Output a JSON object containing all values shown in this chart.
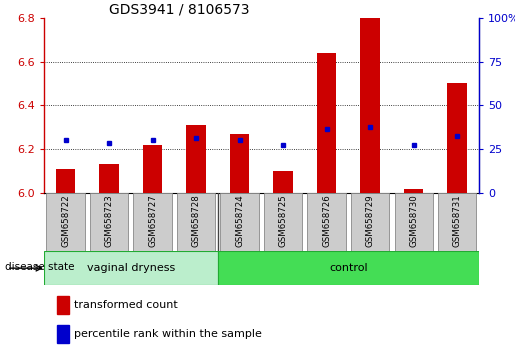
{
  "title": "GDS3941 / 8106573",
  "samples": [
    "GSM658722",
    "GSM658723",
    "GSM658727",
    "GSM658728",
    "GSM658724",
    "GSM658725",
    "GSM658726",
    "GSM658729",
    "GSM658730",
    "GSM658731"
  ],
  "groups": [
    "vaginal dryness",
    "vaginal dryness",
    "vaginal dryness",
    "vaginal dryness",
    "control",
    "control",
    "control",
    "control",
    "control",
    "control"
  ],
  "red_values": [
    6.11,
    6.13,
    6.22,
    6.31,
    6.27,
    6.1,
    6.64,
    6.8,
    6.02,
    6.5
  ],
  "blue_values": [
    6.24,
    6.23,
    6.24,
    6.25,
    6.24,
    6.22,
    6.29,
    6.3,
    6.22,
    6.26
  ],
  "ylim_left": [
    6.0,
    6.8
  ],
  "ylim_right": [
    0,
    100
  ],
  "yticks_left": [
    6.0,
    6.2,
    6.4,
    6.6,
    6.8
  ],
  "yticks_right": [
    0,
    25,
    50,
    75,
    100
  ],
  "ytick_right_labels": [
    "0",
    "25",
    "50",
    "75",
    "100%"
  ],
  "grid_lines": [
    6.2,
    6.4,
    6.6
  ],
  "divider_at": 4,
  "red_color": "#cc0000",
  "blue_color": "#0000cc",
  "bar_width": 0.45,
  "vd_facecolor": "#bbeecc",
  "ctrl_facecolor": "#44dd55",
  "group_edgecolor": "#22aa33",
  "label_box_facecolor": "#cccccc",
  "label_box_edgecolor": "#888888",
  "legend_red": "transformed count",
  "legend_blue": "percentile rank within the sample",
  "disease_state_label": "disease state"
}
